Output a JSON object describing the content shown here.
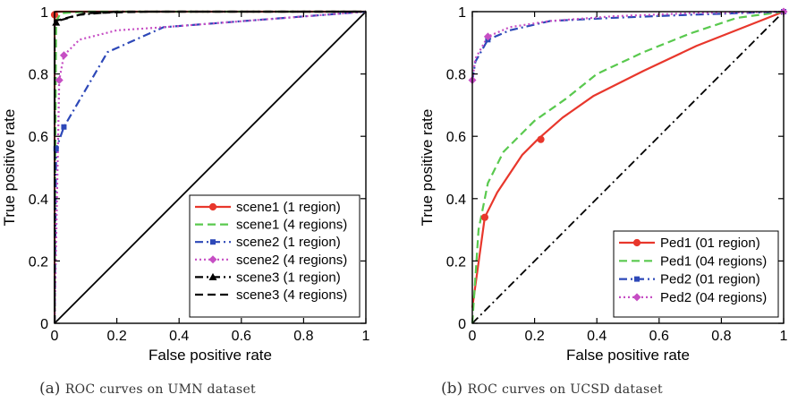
{
  "chart_data": [
    {
      "type": "line",
      "caption_label": "(a)",
      "caption_text": "ROC curves on UMN dataset",
      "xlabel": "False positive rate",
      "ylabel": "True positive rate",
      "xlim": [
        0,
        1
      ],
      "ylim": [
        0,
        1
      ],
      "xticks": [
        "0",
        "0.2",
        "0.4",
        "0.6",
        "0.8",
        "1"
      ],
      "yticks": [
        "0",
        "0.2",
        "0.4",
        "0.6",
        "0.8",
        "1"
      ],
      "grid": false,
      "legend_position": "bottom-right",
      "series": [
        {
          "name": "scene1 (1 region)",
          "color": "#e8372c",
          "dash": "solid",
          "marker": "circle",
          "points": [
            [
              0,
              0
            ],
            [
              0,
              0.99
            ],
            [
              0.005,
              1.0
            ],
            [
              1,
              1
            ]
          ],
          "marker_points": [
            [
              0,
              0.99
            ]
          ]
        },
        {
          "name": "scene1 (4 regions)",
          "color": "#59c94e",
          "dash": "dashed",
          "marker": "none",
          "points": [
            [
              0,
              0
            ],
            [
              0.002,
              0.5
            ],
            [
              0.005,
              0.97
            ],
            [
              0.02,
              0.995
            ],
            [
              0.1,
              1.0
            ],
            [
              1,
              1
            ]
          ]
        },
        {
          "name": "scene2 (1 region)",
          "color": "#2d48b8",
          "dash": "dashdot",
          "marker": "square",
          "points": [
            [
              0,
              0
            ],
            [
              0.005,
              0.56
            ],
            [
              0.03,
              0.63
            ],
            [
              0.17,
              0.87
            ],
            [
              0.35,
              0.95
            ],
            [
              1,
              1
            ]
          ],
          "marker_points": [
            [
              0.005,
              0.56
            ],
            [
              0.03,
              0.63
            ]
          ]
        },
        {
          "name": "scene2 (4 regions)",
          "color": "#c64ec4",
          "dash": "dotted",
          "marker": "diamond",
          "points": [
            [
              0,
              0
            ],
            [
              0.015,
              0.78
            ],
            [
              0.03,
              0.86
            ],
            [
              0.08,
              0.91
            ],
            [
              0.2,
              0.94
            ],
            [
              0.35,
              0.95
            ],
            [
              1,
              1
            ]
          ],
          "marker_points": [
            [
              0.015,
              0.78
            ],
            [
              0.03,
              0.86
            ]
          ]
        },
        {
          "name": "scene3 (1 region)",
          "color": "#000000",
          "dash": "dashdot",
          "marker": "triangle",
          "points": [
            [
              0,
              0
            ],
            [
              0,
              0.96
            ],
            [
              0.01,
              0.97
            ],
            [
              0.08,
              0.99
            ],
            [
              0.2,
              1.0
            ],
            [
              1,
              1
            ]
          ],
          "marker_points": [
            [
              0.005,
              0.965
            ]
          ]
        },
        {
          "name": "scene3 (4 regions)",
          "color": "#000000",
          "dash": "dashed",
          "marker": "none",
          "points": [
            [
              0,
              0
            ],
            [
              0,
              0.97
            ],
            [
              0.04,
              0.98
            ],
            [
              0.1,
              0.995
            ],
            [
              0.3,
              1.0
            ],
            [
              1,
              1
            ]
          ]
        }
      ],
      "reference_line": {
        "points": [
          [
            0,
            0
          ],
          [
            1,
            1
          ]
        ],
        "color": "#000000",
        "dash": "solid"
      }
    },
    {
      "type": "line",
      "caption_label": "(b)",
      "caption_text": "ROC curves on UCSD dataset",
      "xlabel": "False positive rate",
      "ylabel": "True positive rate",
      "xlim": [
        0,
        1
      ],
      "ylim": [
        0,
        1
      ],
      "xticks": [
        "0",
        "0.2",
        "0.4",
        "0.6",
        "0.8",
        "1"
      ],
      "yticks": [
        "0",
        "0.2",
        "0.4",
        "0.6",
        "0.8",
        "1"
      ],
      "grid": false,
      "legend_position": "bottom-right",
      "series": [
        {
          "name": "Ped1 (01 region)",
          "color": "#e8372c",
          "dash": "solid",
          "marker": "circle",
          "points": [
            [
              0,
              0.05
            ],
            [
              0.04,
              0.34
            ],
            [
              0.08,
              0.42
            ],
            [
              0.16,
              0.54
            ],
            [
              0.21,
              0.59
            ],
            [
              0.29,
              0.66
            ],
            [
              0.39,
              0.73
            ],
            [
              0.55,
              0.81
            ],
            [
              0.72,
              0.89
            ],
            [
              1,
              1
            ]
          ],
          "marker_points": [
            [
              0.04,
              0.34
            ],
            [
              0.22,
              0.59
            ]
          ]
        },
        {
          "name": "Ped1 (04 regions)",
          "color": "#59c94e",
          "dash": "dashed",
          "marker": "none",
          "points": [
            [
              0,
              0
            ],
            [
              0.02,
              0.3
            ],
            [
              0.05,
              0.45
            ],
            [
              0.1,
              0.55
            ],
            [
              0.2,
              0.65
            ],
            [
              0.3,
              0.72
            ],
            [
              0.4,
              0.8
            ],
            [
              0.55,
              0.87
            ],
            [
              0.7,
              0.93
            ],
            [
              0.85,
              0.98
            ],
            [
              1,
              1
            ]
          ]
        },
        {
          "name": "Ped2 (01 region)",
          "color": "#2d48b8",
          "dash": "dashdot",
          "marker": "square",
          "points": [
            [
              0,
              0.78
            ],
            [
              0.01,
              0.84
            ],
            [
              0.05,
              0.91
            ],
            [
              0.12,
              0.94
            ],
            [
              0.25,
              0.97
            ],
            [
              0.45,
              0.98
            ],
            [
              0.7,
              0.99
            ],
            [
              1,
              1
            ]
          ],
          "marker_points": [
            [
              0.05,
              0.91
            ],
            [
              1,
              1
            ]
          ]
        },
        {
          "name": "Ped2 (04 regions)",
          "color": "#c64ec4",
          "dash": "dotted",
          "marker": "diamond",
          "points": [
            [
              0,
              0.78
            ],
            [
              0.01,
              0.85
            ],
            [
              0.05,
              0.92
            ],
            [
              0.12,
              0.95
            ],
            [
              0.25,
              0.97
            ],
            [
              0.45,
              0.985
            ],
            [
              0.7,
              0.995
            ],
            [
              1,
              1
            ]
          ],
          "marker_points": [
            [
              0,
              0.78
            ],
            [
              0.05,
              0.92
            ],
            [
              1,
              1
            ]
          ]
        }
      ],
      "reference_line": {
        "points": [
          [
            0,
            0
          ],
          [
            1,
            1
          ]
        ],
        "color": "#000000",
        "dash": "dashdot"
      }
    }
  ]
}
